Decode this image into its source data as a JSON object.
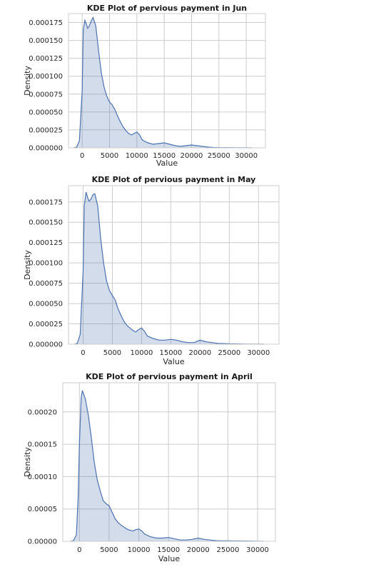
{
  "chart_data": [
    {
      "type": "area",
      "title": "KDE Plot of pervious payment in Jun",
      "xlabel": "Value",
      "ylabel": "Density",
      "xlim": [
        -2500,
        33500
      ],
      "ylim": [
        0,
        0.0001875
      ],
      "xticks": [
        "0",
        "5000",
        "10000",
        "15000",
        "20000",
        "25000",
        "30000"
      ],
      "yticks": [
        "0.000000",
        "0.000025",
        "0.000050",
        "0.000075",
        "0.000100",
        "0.000125",
        "0.000150",
        "0.000175"
      ],
      "grid": true,
      "x": [
        -1500,
        -1000,
        -500,
        0,
        200,
        500,
        800,
        1000,
        1300,
        1700,
        2000,
        2500,
        3000,
        3500,
        4000,
        4500,
        5000,
        5500,
        6000,
        6500,
        7000,
        7500,
        8000,
        8500,
        9000,
        9500,
        10000,
        10500,
        11000,
        12000,
        13000,
        14000,
        15000,
        16000,
        17000,
        18000,
        19000,
        20000,
        21000,
        22000,
        23000,
        24000,
        25000,
        26000,
        27000,
        28000,
        29000,
        30000,
        31000
      ],
      "y": [
        0,
        1e-06,
        1e-05,
        8e-05,
        0.000165,
        0.000178,
        0.000172,
        0.000167,
        0.00017,
        0.000178,
        0.000182,
        0.00017,
        0.000135,
        0.000105,
        8.5e-05,
        7.2e-05,
        6.4e-05,
        6e-05,
        5.3e-05,
        4.4e-05,
        3.6e-05,
        2.9e-05,
        2.4e-05,
        2e-05,
        1.8e-05,
        2e-05,
        2.2e-05,
        1.8e-05,
        1.1e-05,
        7e-06,
        5e-06,
        6e-06,
        7e-06,
        5e-06,
        3e-06,
        2e-06,
        3e-06,
        4e-06,
        3e-06,
        2e-06,
        1e-06,
        5e-07,
        3e-07,
        3e-07,
        3e-07,
        2e-07,
        1e-07,
        5e-08,
        0
      ]
    },
    {
      "type": "area",
      "title": "KDE Plot of pervious payment in May",
      "xlabel": "Value",
      "ylabel": "Density",
      "xlim": [
        -2500,
        33500
      ],
      "ylim": [
        0,
        0.000195
      ],
      "xticks": [
        "0",
        "5000",
        "10000",
        "15000",
        "20000",
        "25000",
        "30000"
      ],
      "yticks": [
        "0.000000",
        "0.000025",
        "0.000050",
        "0.000075",
        "0.000100",
        "0.000125",
        "0.000150",
        "0.000175"
      ],
      "grid": true,
      "x": [
        -1500,
        -1000,
        -500,
        0,
        200,
        500,
        800,
        1000,
        1300,
        1700,
        2000,
        2500,
        3000,
        3500,
        4000,
        4500,
        5000,
        5500,
        6000,
        6500,
        7000,
        7500,
        8000,
        8500,
        9000,
        9500,
        10000,
        10500,
        11000,
        12000,
        13000,
        14000,
        15000,
        16000,
        17000,
        18000,
        19000,
        20000,
        21000,
        22000,
        23000,
        24000,
        25000,
        26000,
        27000,
        28000,
        29000,
        30000,
        31000
      ],
      "y": [
        0,
        1e-06,
        1.2e-05,
        9e-05,
        0.00017,
        0.000187,
        0.00018,
        0.000176,
        0.000178,
        0.000184,
        0.000185,
        0.00017,
        0.00013,
        0.0001,
        7.8e-05,
        6.6e-05,
        6e-05,
        5.4e-05,
        4.3e-05,
        3.5e-05,
        2.8e-05,
        2.3e-05,
        2e-05,
        1.7e-05,
        1.5e-05,
        1.8e-05,
        2e-05,
        1.6e-05,
        1e-05,
        7e-06,
        5e-06,
        5e-06,
        6e-06,
        5e-06,
        3e-06,
        2e-06,
        2e-06,
        5e-06,
        3e-06,
        2e-06,
        1e-06,
        8e-07,
        5e-07,
        4e-07,
        3e-07,
        2e-07,
        1e-07,
        5e-08,
        0
      ]
    },
    {
      "type": "area",
      "title": "KDE Plot of pervious payment in April",
      "xlabel": "Value",
      "ylabel": "Density",
      "xlim": [
        -2800,
        33000
      ],
      "ylim": [
        0,
        0.000245
      ],
      "xticks": [
        "0",
        "5000",
        "10000",
        "15000",
        "20000",
        "25000",
        "30000"
      ],
      "yticks": [
        "0.00000",
        "0.00005",
        "0.00010",
        "0.00015",
        "0.00020"
      ],
      "grid": true,
      "x": [
        -1500,
        -1000,
        -500,
        -200,
        0,
        300,
        500,
        1000,
        1500,
        2000,
        2500,
        3000,
        3500,
        4000,
        4500,
        5000,
        5500,
        6000,
        6500,
        7000,
        7500,
        8000,
        8500,
        9000,
        9500,
        10000,
        10500,
        11000,
        12000,
        13000,
        14000,
        15000,
        16000,
        17000,
        18000,
        19000,
        20000,
        21000,
        22000,
        23000,
        24000,
        25000,
        26000,
        27000,
        28000,
        29000,
        30000,
        31000
      ],
      "y": [
        0,
        1e-06,
        1e-05,
        7e-05,
        0.00015,
        0.000222,
        0.000233,
        0.00022,
        0.000195,
        0.00016,
        0.000122,
        9.5e-05,
        7.8e-05,
        6.3e-05,
        5.8e-05,
        5.5e-05,
        4.5e-05,
        3.5e-05,
        2.9e-05,
        2.5e-05,
        2.2e-05,
        1.9e-05,
        1.7e-05,
        1.6e-05,
        1.8e-05,
        1.9e-05,
        1.6e-05,
        1.1e-05,
        7e-06,
        5e-06,
        5e-06,
        6e-06,
        4e-06,
        2e-06,
        2e-06,
        3e-06,
        5e-06,
        3e-06,
        2e-06,
        1e-06,
        8e-07,
        7e-07,
        6e-07,
        5e-07,
        4e-07,
        3e-07,
        2e-07,
        0
      ]
    }
  ]
}
